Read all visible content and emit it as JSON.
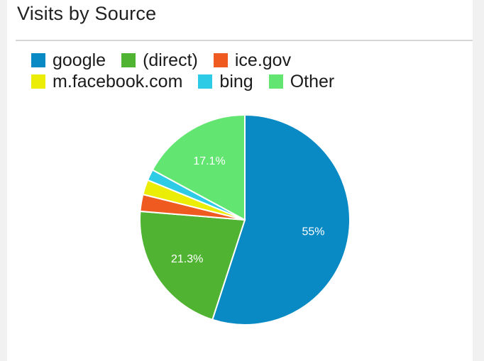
{
  "chart_data": {
    "type": "pie",
    "title": "Visits by Source",
    "slices": [
      {
        "label": "google",
        "value": 55.0,
        "display": "55%",
        "color": "#0a8ac5"
      },
      {
        "label": "(direct)",
        "value": 21.3,
        "display": "21.3%",
        "color": "#50b432"
      },
      {
        "label": "ice.gov",
        "value": 2.6,
        "display": "",
        "color": "#ee5a1f"
      },
      {
        "label": "m.facebook.com",
        "value": 2.3,
        "display": "",
        "color": "#eced07"
      },
      {
        "label": "bing",
        "value": 1.7,
        "display": "",
        "color": "#2dcbe5"
      },
      {
        "label": "Other",
        "value": 17.1,
        "display": "17.1%",
        "color": "#63e571"
      }
    ],
    "legend_placement": "top"
  }
}
